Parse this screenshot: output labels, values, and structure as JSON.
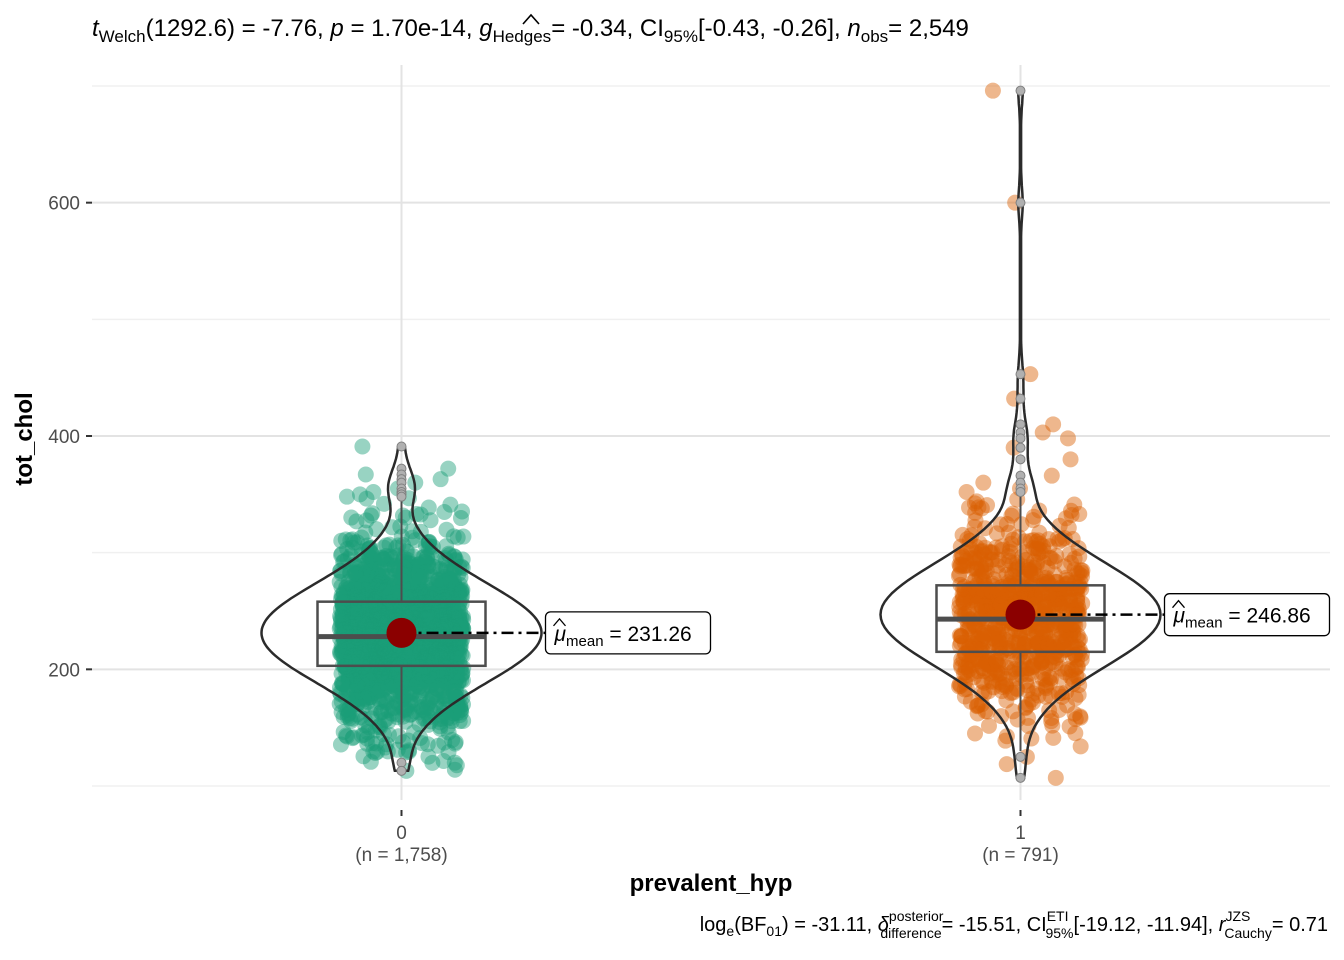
{
  "subtitle": {
    "t_sym": "t",
    "t_sub": "Welch",
    "t_df": "(1292.6) = -7.76,",
    "p_sym": "p",
    "p_val": "= 1.70e-14,",
    "g_sym": "g",
    "g_sub": "Hedges",
    "g_val": "= -0.34,",
    "ci_label": "CI",
    "ci_sub": "95%",
    "ci_val": "[-0.43, -0.26],",
    "n_sym": "n",
    "n_sub": "obs",
    "n_val": "= 2,549"
  },
  "caption": {
    "log": "log",
    "log_sub": "e",
    "bf_open": "(BF",
    "bf_sub": "01",
    "bf_val": ") = -31.11,",
    "delta_sym": "δ",
    "delta_sup": "posterior",
    "delta_sub": "difference",
    "delta_val": "= -15.51,",
    "ci_label": "CI",
    "ci_sup": "ETI",
    "ci_sub": "95%",
    "ci_val": "[-19.12, -11.94],",
    "r_sym": "r",
    "r_sup": "JZS",
    "r_sub": "Cauchy",
    "r_val": "= 0.71"
  },
  "mean_label": {
    "mu": "μ",
    "sub": "mean"
  },
  "chart_data": {
    "type": "violin-box-scatter",
    "xlabel": "prevalent_hyp",
    "ylabel": "tot_chol",
    "ylim": [
      88,
      718
    ],
    "yticks": [
      200,
      400,
      600
    ],
    "grid": true,
    "groups": [
      {
        "category": "0",
        "n_label": "(n = 1,758)",
        "n": 1758,
        "color": "#1B9E77",
        "mean": 231.26,
        "mean_text": "= 231.26",
        "box": {
          "q1": 203,
          "median": 228,
          "q3": 258,
          "whisker_low": 133,
          "whisker_high": 346
        },
        "min": 113,
        "max": 391,
        "outliers": [
          391,
          372,
          367,
          363,
          360,
          355,
          352,
          350,
          348,
          120,
          113
        ]
      },
      {
        "category": "1",
        "n_label": "(n = 791)",
        "n": 791,
        "color": "#D95F02",
        "mean": 246.86,
        "mean_text": "= 246.86",
        "box": {
          "q1": 215,
          "median": 243,
          "q3": 272,
          "whisker_low": 130,
          "whisker_high": 357
        },
        "min": 107,
        "max": 696,
        "outliers": [
          696,
          600,
          453,
          432,
          410,
          403,
          398,
          390,
          380,
          366,
          360,
          355,
          352,
          125,
          107
        ]
      }
    ]
  }
}
